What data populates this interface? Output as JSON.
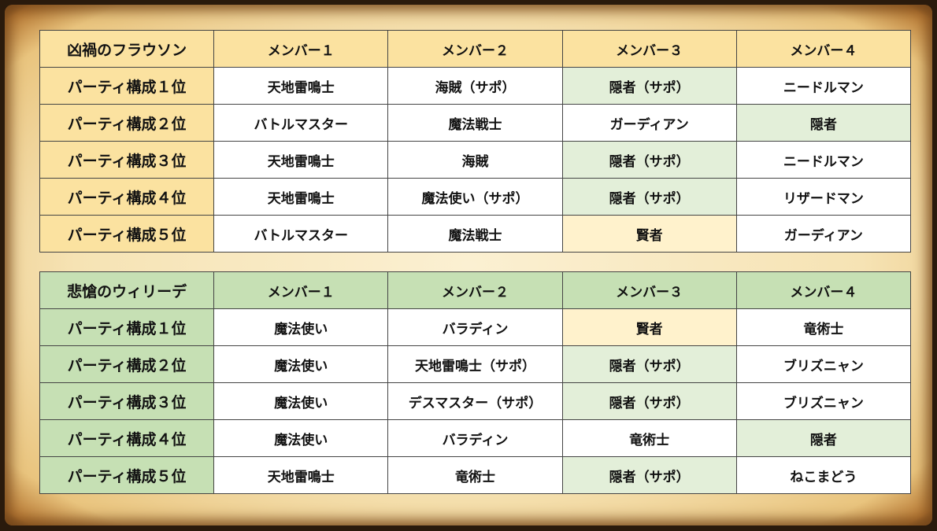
{
  "colors": {
    "header_yellow": "#fbe2a0",
    "header_green": "#c6e0b4",
    "highlight_green": "#e3efd9",
    "highlight_yellow": "#fff2cc"
  },
  "tables": [
    {
      "title": "凶禍のフラウソン",
      "headers": [
        "メンバー１",
        "メンバー２",
        "メンバー３",
        "メンバー４"
      ],
      "rows": [
        {
          "label": "パーティ構成１位",
          "cells": [
            "天地雷鳴士",
            "海賊（サポ）",
            "隠者（サポ）",
            "ニードルマン"
          ],
          "hl": [
            "w",
            "w",
            "g",
            "w"
          ]
        },
        {
          "label": "パーティ構成２位",
          "cells": [
            "バトルマスター",
            "魔法戦士",
            "ガーディアン",
            "隠者"
          ],
          "hl": [
            "w",
            "w",
            "w",
            "g"
          ]
        },
        {
          "label": "パーティ構成３位",
          "cells": [
            "天地雷鳴士",
            "海賊",
            "隠者（サポ）",
            "ニードルマン"
          ],
          "hl": [
            "w",
            "w",
            "g",
            "w"
          ]
        },
        {
          "label": "パーティ構成４位",
          "cells": [
            "天地雷鳴士",
            "魔法使い（サポ）",
            "隠者（サポ）",
            "リザードマン"
          ],
          "hl": [
            "w",
            "w",
            "g",
            "w"
          ]
        },
        {
          "label": "パーティ構成５位",
          "cells": [
            "バトルマスター",
            "魔法戦士",
            "賢者",
            "ガーディアン"
          ],
          "hl": [
            "w",
            "w",
            "y",
            "w"
          ]
        }
      ]
    },
    {
      "title": "悲愴のウィリーデ",
      "headers": [
        "メンバー１",
        "メンバー２",
        "メンバー３",
        "メンバー４"
      ],
      "rows": [
        {
          "label": "パーティ構成１位",
          "cells": [
            "魔法使い",
            "バラディン",
            "賢者",
            "竜術士"
          ],
          "hl": [
            "w",
            "w",
            "y",
            "w"
          ]
        },
        {
          "label": "パーティ構成２位",
          "cells": [
            "魔法使い",
            "天地雷鳴士（サポ）",
            "隠者（サポ）",
            "ブリズニャン"
          ],
          "hl": [
            "w",
            "w",
            "g",
            "w"
          ]
        },
        {
          "label": "パーティ構成３位",
          "cells": [
            "魔法使い",
            "デスマスター（サポ）",
            "隠者（サポ）",
            "ブリズニャン"
          ],
          "hl": [
            "w",
            "w",
            "g",
            "w"
          ]
        },
        {
          "label": "パーティ構成４位",
          "cells": [
            "魔法使い",
            "バラディン",
            "竜術士",
            "隠者"
          ],
          "hl": [
            "w",
            "w",
            "w",
            "g"
          ]
        },
        {
          "label": "パーティ構成５位",
          "cells": [
            "天地雷鳴士",
            "竜術士",
            "隠者（サポ）",
            "ねこまどう"
          ],
          "hl": [
            "w",
            "w",
            "g",
            "w"
          ]
        }
      ]
    }
  ]
}
